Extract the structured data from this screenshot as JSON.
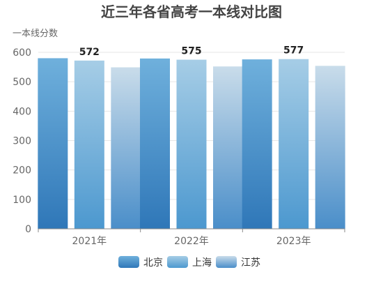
{
  "chart_data": {
    "type": "bar",
    "title": "近三年各省高考一本线对比图",
    "ylabel": "一本线分数",
    "xlabel": "",
    "categories": [
      "2021年",
      "2022年",
      "2023年"
    ],
    "ylim": [
      0,
      600
    ],
    "yticks": [
      0,
      100,
      200,
      300,
      400,
      500,
      600
    ],
    "grid": true,
    "legend_position": "bottom",
    "series": [
      {
        "name": "北京",
        "values": [
          580,
          579,
          576
        ],
        "color_top": "#6fb0dc",
        "color_bottom": "#2f77b8"
      },
      {
        "name": "上海",
        "values": [
          572,
          575,
          577
        ],
        "color_top": "#a6cde6",
        "color_bottom": "#4c98cf"
      },
      {
        "name": "江苏",
        "values": [
          549,
          552,
          554
        ],
        "color_top": "#c9dcea",
        "color_bottom": "#4a8ec9"
      }
    ],
    "data_labels": [
      {
        "category": "2021年",
        "series": "上海",
        "text": "572"
      },
      {
        "category": "2022年",
        "series": "上海",
        "text": "575"
      },
      {
        "category": "2023年",
        "series": "上海",
        "text": "577"
      }
    ]
  }
}
